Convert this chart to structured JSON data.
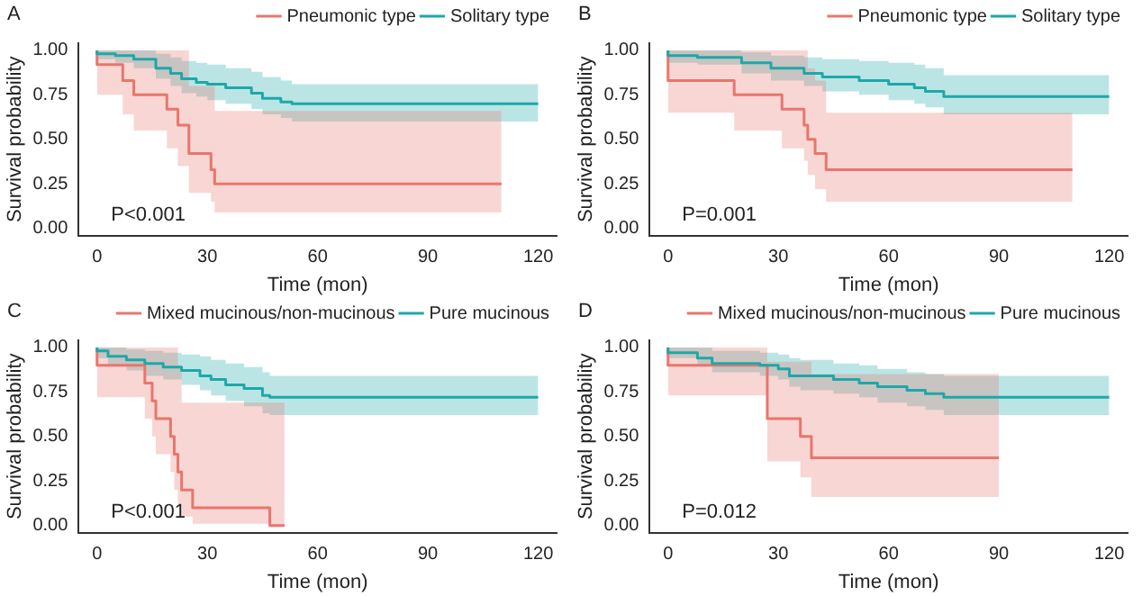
{
  "chart_data": [
    {
      "type": "step",
      "title": "A",
      "xlabel": "Time (mon)",
      "ylabel": "Survival probability",
      "legend": "top right",
      "annotations": [
        "P<0.001"
      ],
      "xlim": [
        -5,
        125
      ],
      "xticks": [
        0,
        30,
        60,
        90,
        120
      ],
      "ylim": [
        -0.04,
        1.04
      ],
      "yticks": [
        {
          "value": 0,
          "label": "0.00"
        },
        {
          "value": 0.25,
          "label": "0.25"
        },
        {
          "value": 0.5,
          "label": "0.50"
        },
        {
          "value": 0.75,
          "label": "0.75"
        },
        {
          "value": 1,
          "label": "1.00"
        }
      ],
      "series": [
        {
          "name": "Pneumonic type",
          "color": "#e8766d",
          "x": [
            0,
            7,
            10,
            19,
            22,
            25,
            31,
            32,
            38,
            110
          ],
          "values": [
            1,
            0.92,
            0.83,
            0.75,
            0.67,
            0.58,
            0.42,
            0.33,
            0.25,
            0.25
          ],
          "lower": [
            1,
            0.75,
            0.64,
            0.55,
            0.45,
            0.35,
            0.2,
            0.15,
            0.09,
            0.09
          ],
          "upper": [
            1,
            1,
            1,
            1,
            1,
            1,
            0.8,
            0.8,
            0.66,
            0.66
          ]
        },
        {
          "name": "Solitary type",
          "color": "#1ea8a8",
          "x": [
            0,
            5,
            10,
            16,
            20,
            23,
            27,
            30,
            35,
            42,
            45,
            50,
            53,
            57,
            120
          ],
          "values": [
            1,
            0.98,
            0.97,
            0.95,
            0.9,
            0.87,
            0.84,
            0.82,
            0.81,
            0.79,
            0.76,
            0.73,
            0.71,
            0.7,
            0.7
          ],
          "lower": [
            1,
            0.95,
            0.93,
            0.9,
            0.84,
            0.8,
            0.76,
            0.74,
            0.72,
            0.7,
            0.67,
            0.64,
            0.62,
            0.6,
            0.6
          ],
          "upper": [
            1,
            1,
            1,
            1,
            0.98,
            0.96,
            0.94,
            0.93,
            0.92,
            0.9,
            0.88,
            0.85,
            0.83,
            0.81,
            0.81
          ]
        }
      ]
    },
    {
      "type": "step",
      "title": "B",
      "xlabel": "Time (mon)",
      "ylabel": "Survival probability",
      "legend": "top right",
      "annotations": [
        "P=0.001"
      ],
      "xlim": [
        -5,
        125
      ],
      "xticks": [
        0,
        30,
        60,
        90,
        120
      ],
      "ylim": [
        -0.04,
        1.04
      ],
      "yticks": [
        {
          "value": 0,
          "label": "0.00"
        },
        {
          "value": 0.25,
          "label": "0.25"
        },
        {
          "value": 0.5,
          "label": "0.50"
        },
        {
          "value": 0.75,
          "label": "0.75"
        },
        {
          "value": 1,
          "label": "1.00"
        }
      ],
      "series": [
        {
          "name": "Pneumonic type",
          "color": "#e8766d",
          "x": [
            0,
            18,
            31,
            37,
            38,
            40,
            43,
            60,
            110
          ],
          "values": [
            1,
            0.83,
            0.75,
            0.67,
            0.58,
            0.5,
            0.42,
            0.33,
            0.33
          ],
          "lower": [
            1,
            0.65,
            0.55,
            0.45,
            0.38,
            0.3,
            0.22,
            0.15,
            0.15
          ],
          "upper": [
            1,
            1,
            1,
            1,
            1,
            0.9,
            0.83,
            0.65,
            0.65
          ]
        },
        {
          "name": "Solitary type",
          "color": "#1ea8a8",
          "x": [
            0,
            8,
            20,
            28,
            37,
            42,
            52,
            60,
            67,
            70,
            75,
            79,
            120
          ],
          "values": [
            1,
            0.97,
            0.96,
            0.93,
            0.9,
            0.87,
            0.85,
            0.83,
            0.81,
            0.79,
            0.77,
            0.74,
            0.74
          ],
          "lower": [
            1,
            0.93,
            0.92,
            0.87,
            0.83,
            0.8,
            0.77,
            0.75,
            0.72,
            0.7,
            0.68,
            0.64,
            0.64
          ],
          "upper": [
            1,
            1,
            1,
            0.99,
            0.97,
            0.96,
            0.95,
            0.94,
            0.93,
            0.92,
            0.9,
            0.86,
            0.86
          ]
        }
      ]
    },
    {
      "type": "step",
      "title": "C",
      "xlabel": "Time (mon)",
      "ylabel": "Survival probability",
      "legend": "top right",
      "annotations": [
        "P<0.001"
      ],
      "xlim": [
        -5,
        125
      ],
      "xticks": [
        0,
        30,
        60,
        90,
        120
      ],
      "ylim": [
        -0.04,
        1.04
      ],
      "yticks": [
        {
          "value": 0,
          "label": "0.00"
        },
        {
          "value": 0.25,
          "label": "0.25"
        },
        {
          "value": 0.5,
          "label": "0.50"
        },
        {
          "value": 0.75,
          "label": "0.75"
        },
        {
          "value": 1,
          "label": "1.00"
        }
      ],
      "series": [
        {
          "name": "Mixed mucinous/non-mucinous",
          "color": "#e8766d",
          "x": [
            0,
            13,
            15,
            16,
            20,
            21,
            22,
            23,
            26,
            47,
            51
          ],
          "values": [
            1,
            0.9,
            0.8,
            0.7,
            0.6,
            0.5,
            0.4,
            0.3,
            0.2,
            0.1,
            0
          ],
          "lower": [
            1,
            0.72,
            0.6,
            0.5,
            0.4,
            0.3,
            0.2,
            0.12,
            0.05,
            0.01,
            0
          ],
          "upper": [
            1,
            1,
            1,
            1,
            1,
            1,
            1,
            0.9,
            0.69,
            0.69,
            0.69
          ]
        },
        {
          "name": "Pure mucinous",
          "color": "#1ea8a8",
          "x": [
            0,
            3,
            8,
            13,
            18,
            23,
            28,
            31,
            35,
            40,
            45,
            47,
            56,
            120
          ],
          "values": [
            1,
            0.98,
            0.95,
            0.93,
            0.91,
            0.89,
            0.87,
            0.84,
            0.82,
            0.79,
            0.77,
            0.73,
            0.72,
            0.72
          ],
          "lower": [
            1,
            0.94,
            0.9,
            0.87,
            0.84,
            0.82,
            0.79,
            0.76,
            0.73,
            0.7,
            0.67,
            0.63,
            0.62,
            0.62
          ],
          "upper": [
            1,
            1,
            1,
            0.99,
            0.98,
            0.97,
            0.96,
            0.95,
            0.93,
            0.91,
            0.89,
            0.86,
            0.84,
            0.84
          ]
        }
      ]
    },
    {
      "type": "step",
      "title": "D",
      "xlabel": "Time (mon)",
      "ylabel": "Survival probability",
      "legend": "top right",
      "annotations": [
        "P=0.012"
      ],
      "xlim": [
        -5,
        125
      ],
      "xticks": [
        0,
        30,
        60,
        90,
        120
      ],
      "ylim": [
        -0.04,
        1.04
      ],
      "yticks": [
        {
          "value": 0,
          "label": "0.00"
        },
        {
          "value": 0.25,
          "label": "0.25"
        },
        {
          "value": 0.5,
          "label": "0.50"
        },
        {
          "value": 0.75,
          "label": "0.75"
        },
        {
          "value": 1,
          "label": "1.00"
        }
      ],
      "series": [
        {
          "name": "Mixed mucinous/non-mucinous",
          "color": "#e8766d",
          "x": [
            0,
            27,
            36,
            39,
            72,
            90
          ],
          "values": [
            1,
            0.9,
            0.6,
            0.5,
            0.38,
            0.38
          ],
          "lower": [
            1,
            0.73,
            0.36,
            0.27,
            0.16,
            0.16
          ],
          "upper": [
            1,
            1,
            0.92,
            0.92,
            0.85,
            0.85
          ]
        },
        {
          "name": "Pure mucinous",
          "color": "#1ea8a8",
          "x": [
            0,
            8,
            12,
            25,
            30,
            33,
            36,
            45,
            52,
            57,
            65,
            70,
            75,
            78,
            120
          ],
          "values": [
            1,
            0.97,
            0.94,
            0.91,
            0.9,
            0.88,
            0.84,
            0.84,
            0.82,
            0.8,
            0.78,
            0.76,
            0.74,
            0.72,
            0.72
          ],
          "lower": [
            1,
            0.94,
            0.9,
            0.86,
            0.84,
            0.82,
            0.78,
            0.76,
            0.74,
            0.72,
            0.69,
            0.67,
            0.65,
            0.62,
            0.62
          ],
          "upper": [
            1,
            1,
            1,
            0.98,
            0.97,
            0.96,
            0.94,
            0.93,
            0.91,
            0.9,
            0.88,
            0.86,
            0.85,
            0.84,
            0.84
          ]
        }
      ]
    }
  ]
}
